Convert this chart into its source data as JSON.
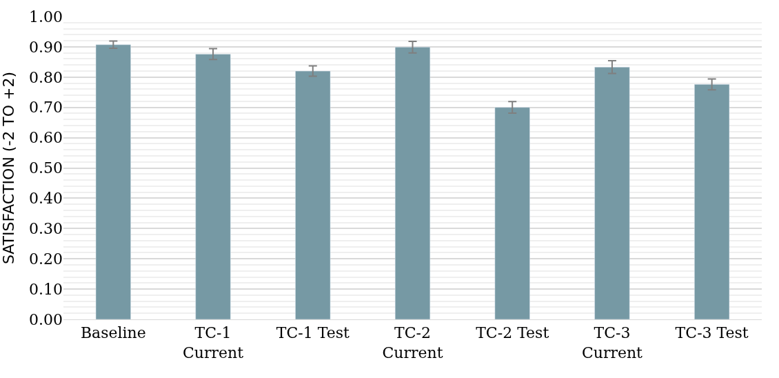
{
  "chart_data": {
    "type": "bar",
    "ylabel": "SATISFACTION (-2 TO +2)",
    "categories": [
      "Baseline",
      "TC-1 Current",
      "TC-1 Test",
      "TC-2 Current",
      "TC-2 Test",
      "TC-3 Current",
      "TC-3 Test"
    ],
    "values": [
      0.907,
      0.876,
      0.82,
      0.899,
      0.7,
      0.833,
      0.776
    ],
    "errors": [
      0.012,
      0.018,
      0.017,
      0.019,
      0.019,
      0.021,
      0.018
    ],
    "color": "#7699a4",
    "ylim": [
      0,
      1
    ],
    "yticks": [
      {
        "value": 0,
        "label": "0.00"
      },
      {
        "value": 0.1,
        "label": "0.10"
      },
      {
        "value": 0.2,
        "label": "0.20"
      },
      {
        "value": 0.3,
        "label": "0.30"
      },
      {
        "value": 0.4,
        "label": "0.40"
      },
      {
        "value": 0.5,
        "label": "0.50"
      },
      {
        "value": 0.6,
        "label": "0.60"
      },
      {
        "value": 0.7,
        "label": "0.70"
      },
      {
        "value": 0.8,
        "label": "0.80"
      },
      {
        "value": 0.9,
        "label": "0.90"
      },
      {
        "value": 1,
        "label": "1.00"
      }
    ],
    "grid": "y"
  }
}
